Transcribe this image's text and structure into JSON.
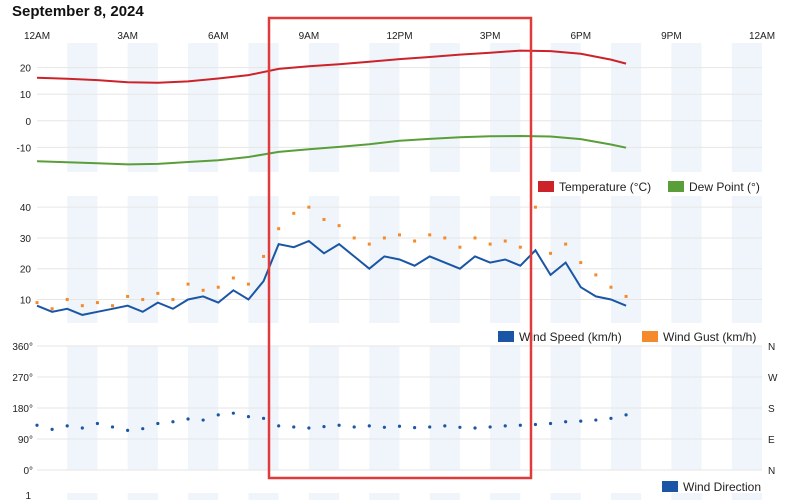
{
  "page": {
    "title": "September 8, 2024"
  },
  "colors": {
    "temperature": "#cc2229",
    "dew_point": "#5a9e3a",
    "wind_speed": "#1a56a5",
    "wind_gust": "#f48a2b",
    "wind_direction": "#1a56a5",
    "shade_band": "#f0f5fb",
    "highlight_box": "#e03a3a"
  },
  "chart_data": [
    {
      "type": "line",
      "x_ticks": [
        "12AM",
        "3AM",
        "6AM",
        "9AM",
        "12PM",
        "3PM",
        "6PM",
        "9PM",
        "12AM"
      ],
      "y_ticks": [
        "20",
        "10",
        "0",
        "-10"
      ],
      "ylim": [
        -17,
        27
      ],
      "legend": [
        "Temperature (°C)",
        "Dew Point (°)"
      ],
      "legend_position": "bottom-right",
      "series": [
        {
          "name": "Temperature (°C)",
          "x": [
            0,
            1,
            2,
            3,
            4,
            5,
            6,
            7,
            8,
            9,
            10,
            11,
            12,
            13,
            14,
            15,
            16,
            17,
            18,
            19,
            19.5
          ],
          "y": [
            16.2,
            15.8,
            15.3,
            14.5,
            14.3,
            14.8,
            15.9,
            17.2,
            19.5,
            20.5,
            21.3,
            22.2,
            23.2,
            24.0,
            24.9,
            25.6,
            26.4,
            26.2,
            25.2,
            23.0,
            21.5
          ]
        },
        {
          "name": "Dew Point (°)",
          "x": [
            0,
            1,
            2,
            3,
            4,
            5,
            6,
            7,
            8,
            9,
            10,
            11,
            12,
            13,
            14,
            15,
            16,
            17,
            18,
            19,
            19.5
          ],
          "y": [
            -15.2,
            -15.6,
            -16.0,
            -16.4,
            -16.2,
            -15.5,
            -14.8,
            -13.6,
            -11.7,
            -10.7,
            -9.8,
            -8.8,
            -7.5,
            -6.8,
            -6.2,
            -5.8,
            -5.7,
            -5.9,
            -6.9,
            -8.9,
            -10.1
          ]
        }
      ]
    },
    {
      "type": "line",
      "y_ticks": [
        "40",
        "30",
        "20",
        "10"
      ],
      "ylim": [
        4,
        42
      ],
      "legend": [
        "Wind Speed (km/h)",
        "Wind Gust (km/h)"
      ],
      "legend_position": "bottom-right",
      "series": [
        {
          "name": "Wind Speed (km/h)",
          "x": [
            0,
            0.5,
            1,
            1.5,
            2,
            2.5,
            3,
            3.5,
            4,
            4.5,
            5,
            5.5,
            6,
            6.5,
            7,
            7.5,
            8,
            8.5,
            9,
            9.5,
            10,
            10.5,
            11,
            11.5,
            12,
            12.5,
            13,
            13.5,
            14,
            14.5,
            15,
            15.5,
            16,
            16.5,
            17,
            17.5,
            18,
            18.5,
            19,
            19.5
          ],
          "y": [
            8,
            6,
            7,
            5,
            6,
            7,
            8,
            6,
            9,
            7,
            10,
            11,
            9,
            13,
            10,
            16,
            28,
            27,
            29,
            25,
            28,
            24,
            20,
            24,
            23,
            21,
            24,
            22,
            20,
            24,
            22,
            23,
            21,
            26,
            18,
            22,
            14,
            11,
            10,
            8
          ]
        },
        {
          "name": "Wind Gust (km/h)",
          "x": [
            0,
            0.5,
            1,
            1.5,
            2,
            2.5,
            3,
            3.5,
            4,
            4.5,
            5,
            5.5,
            6,
            6.5,
            7,
            7.5,
            8,
            8.5,
            9,
            9.5,
            10,
            10.5,
            11,
            11.5,
            12,
            12.5,
            13,
            13.5,
            14,
            14.5,
            15,
            15.5,
            16,
            16.5,
            17,
            17.5,
            18,
            18.5,
            19,
            19.5
          ],
          "y": [
            9,
            7,
            10,
            8,
            9,
            8,
            11,
            10,
            12,
            10,
            15,
            13,
            14,
            17,
            15,
            24,
            33,
            38,
            40,
            36,
            34,
            30,
            28,
            30,
            31,
            29,
            31,
            30,
            27,
            30,
            28,
            29,
            27,
            40,
            25,
            28,
            22,
            18,
            14,
            11
          ]
        }
      ]
    },
    {
      "type": "scatter",
      "y_ticks": [
        "360°",
        "270°",
        "180°",
        "90°",
        "0°"
      ],
      "y_right_ticks": [
        "N",
        "W",
        "S",
        "E",
        "N"
      ],
      "ylim": [
        0,
        360
      ],
      "legend": [
        "Wind Direction"
      ],
      "legend_position": "bottom-right",
      "series": [
        {
          "name": "Wind Direction",
          "x": [
            0,
            0.5,
            1,
            1.5,
            2,
            2.5,
            3,
            3.5,
            4,
            4.5,
            5,
            5.5,
            6,
            6.5,
            7,
            7.5,
            8,
            8.5,
            9,
            9.5,
            10,
            10.5,
            11,
            11.5,
            12,
            12.5,
            13,
            13.5,
            14,
            14.5,
            15,
            15.5,
            16,
            16.5,
            17,
            17.5,
            18,
            18.5,
            19,
            19.5
          ],
          "y": [
            130,
            118,
            128,
            122,
            135,
            125,
            115,
            120,
            135,
            140,
            148,
            145,
            160,
            165,
            155,
            150,
            128,
            125,
            122,
            126,
            130,
            125,
            128,
            124,
            127,
            123,
            125,
            128,
            124,
            122,
            125,
            128,
            130,
            132,
            135,
            140,
            142,
            145,
            150,
            160
          ]
        }
      ]
    },
    {
      "type": "line",
      "y_ticks": [
        "1"
      ],
      "series": []
    }
  ]
}
